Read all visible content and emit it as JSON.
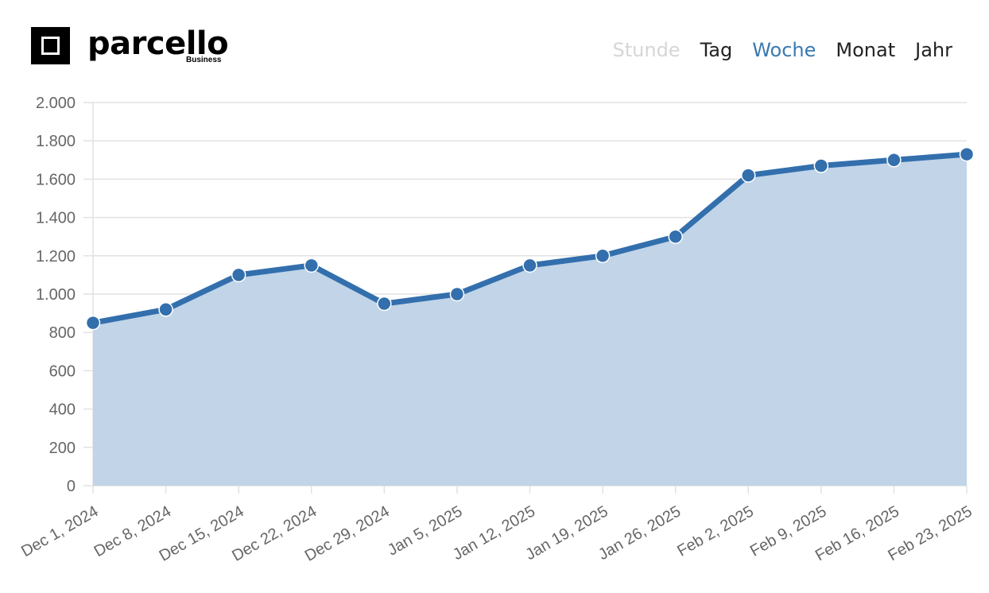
{
  "brand": {
    "name": "parcello",
    "subtitle": "Business"
  },
  "periods": [
    {
      "label": "Stunde",
      "state": "disabled"
    },
    {
      "label": "Tag",
      "state": "normal"
    },
    {
      "label": "Woche",
      "state": "active"
    },
    {
      "label": "Monat",
      "state": "normal"
    },
    {
      "label": "Jahr",
      "state": "normal"
    }
  ],
  "colors": {
    "line": "#336fad",
    "fill": "#c1d4e8",
    "active_period": "#3a79b0",
    "disabled_period": "#d6d6d6",
    "grid": "#e2e2e2",
    "axis_text": "#666666"
  },
  "chart_data": {
    "type": "area",
    "categories": [
      "Dec 1, 2024",
      "Dec 8, 2024",
      "Dec 15, 2024",
      "Dec 22, 2024",
      "Dec 29, 2024",
      "Jan 5, 2025",
      "Jan 12, 2025",
      "Jan 19, 2025",
      "Jan 26, 2025",
      "Feb 2, 2025",
      "Feb 9, 2025",
      "Feb 16, 2025",
      "Feb 23, 2025"
    ],
    "series": [
      {
        "values": [
          850,
          920,
          1100,
          1150,
          950,
          1000,
          1150,
          1200,
          1300,
          1620,
          1670,
          1700,
          1730
        ]
      }
    ],
    "ylim": [
      0,
      2000
    ],
    "yticks": [
      0,
      200,
      400,
      600,
      800,
      1000,
      1200,
      1400,
      1600,
      1800,
      2000
    ],
    "ytick_labels": [
      "0",
      "200",
      "400",
      "600",
      "800",
      "1.000",
      "1.200",
      "1.400",
      "1.600",
      "1.800",
      "2.000"
    ],
    "grid": true,
    "legend": "none",
    "markers": true
  }
}
